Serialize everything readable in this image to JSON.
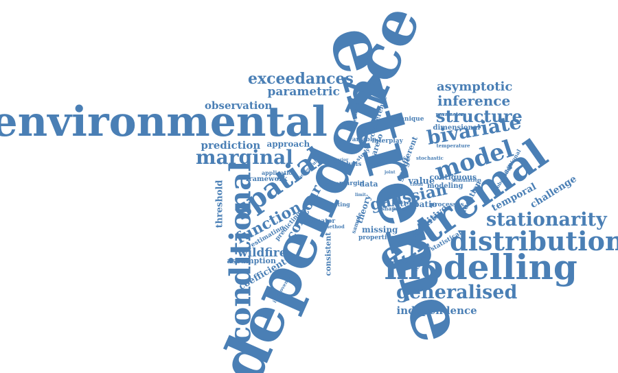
{
  "colors": {
    "word": "#4a7fb5",
    "background": "#ffffff"
  },
  "words": [
    {
      "id": "w-extreme",
      "text": "extreme"
    },
    {
      "id": "w-dependence",
      "text": "dependence"
    },
    {
      "id": "w-environmental",
      "text": "environmental"
    },
    {
      "id": "w-extremal",
      "text": "extremal"
    },
    {
      "id": "w-modelling",
      "text": "modelling"
    },
    {
      "id": "w-distribution",
      "text": "distribution"
    },
    {
      "id": "w-conditional",
      "text": "conditional"
    },
    {
      "id": "w-spatial",
      "text": "spatial"
    },
    {
      "id": "w-marginal",
      "text": "marginal"
    },
    {
      "id": "w-model",
      "text": "model"
    },
    {
      "id": "w-stationarity",
      "text": "stationarity"
    },
    {
      "id": "w-generalised",
      "text": "generalised"
    },
    {
      "id": "w-bivariate",
      "text": "bivariate"
    },
    {
      "id": "w-structure",
      "text": "structure"
    },
    {
      "id": "w-exceedances",
      "text": "exceedances"
    },
    {
      "id": "w-function",
      "text": "function"
    },
    {
      "id": "w-contour",
      "text": "contour"
    },
    {
      "id": "w-gaussian",
      "text": "gaussian"
    },
    {
      "id": "w-inference",
      "text": "inference"
    },
    {
      "id": "w-asymptotic",
      "text": "asymptotic"
    },
    {
      "id": "w-parametric",
      "text": "parametric"
    },
    {
      "id": "w-observation",
      "text": "observation"
    },
    {
      "id": "w-prediction",
      "text": "prediction"
    },
    {
      "id": "w-independence",
      "text": "independence"
    },
    {
      "id": "w-wildfire",
      "text": "wildfire"
    },
    {
      "id": "w-temporal",
      "text": "temporal"
    },
    {
      "id": "w-threshold",
      "text": "threshold"
    },
    {
      "id": "w-coefficient",
      "text": "coefficient"
    },
    {
      "id": "w-approach",
      "text": "approach"
    },
    {
      "id": "w-additive",
      "text": "additive"
    },
    {
      "id": "w-challenge",
      "text": "challenge"
    },
    {
      "id": "w-assumption",
      "text": "assumption"
    },
    {
      "id": "w-missing",
      "text": "missing"
    },
    {
      "id": "w-framework",
      "text": "framework"
    },
    {
      "id": "w-value",
      "text": "value"
    },
    {
      "id": "w-latent",
      "text": "latent"
    },
    {
      "id": "w-spatio",
      "text": "spatio"
    },
    {
      "id": "w-theory",
      "text": "theory"
    },
    {
      "id": "w-contiguous",
      "text": "contiguous"
    },
    {
      "id": "w-location",
      "text": "location"
    },
    {
      "id": "w-dimensional",
      "text": "dimensional"
    },
    {
      "id": "w-consistent",
      "text": "consistent"
    },
    {
      "id": "w-properties",
      "text": "properties"
    },
    {
      "id": "w-estimator",
      "text": "estimator"
    },
    {
      "id": "w-estimating",
      "text": "estimating"
    },
    {
      "id": "w-predicting",
      "text": "predicting"
    },
    {
      "id": "w-modeling",
      "text": "modeling"
    },
    {
      "id": "w-processes",
      "text": "processes"
    },
    {
      "id": "w-technique",
      "text": "technique"
    },
    {
      "id": "w-conference",
      "text": "conference"
    },
    {
      "id": "w-pareto",
      "text": "pareto"
    },
    {
      "id": "w-interplay",
      "text": "interplay"
    },
    {
      "id": "w-variable",
      "text": "variable"
    },
    {
      "id": "w-different",
      "text": "different"
    },
    {
      "id": "w-gauge",
      "text": "gauge"
    },
    {
      "id": "w-data",
      "text": "data"
    },
    {
      "id": "w-margin",
      "text": "margin"
    },
    {
      "id": "w-analysis",
      "text": "analysis"
    },
    {
      "id": "w-application",
      "text": "application"
    },
    {
      "id": "w-limiting",
      "text": "limiting"
    },
    {
      "id": "w-method",
      "text": "method"
    },
    {
      "id": "w-statistical",
      "text": "statistical"
    },
    {
      "id": "w-methodology",
      "text": "methodology"
    },
    {
      "id": "w-improvement",
      "text": "improvement"
    },
    {
      "id": "w-parameter",
      "text": "parameter"
    },
    {
      "id": "w-temperature",
      "text": "temperature"
    },
    {
      "id": "w-stochastic",
      "text": "stochastic"
    },
    {
      "id": "w-simulation",
      "text": "simulation"
    },
    {
      "id": "w-existing",
      "text": "existing"
    },
    {
      "id": "w-successful",
      "text": "successful"
    },
    {
      "id": "w-study",
      "text": "study"
    },
    {
      "id": "w-dependent",
      "text": "dependent"
    },
    {
      "id": "w-sample",
      "text": "sample"
    },
    {
      "id": "w-shape",
      "text": "shape"
    },
    {
      "id": "w-probability",
      "text": "probability"
    },
    {
      "id": "w-cloud",
      "text": "cloud"
    },
    {
      "id": "w-joint",
      "text": "joint"
    },
    {
      "id": "w-event",
      "text": "event"
    },
    {
      "id": "w-posterior",
      "text": "posterior"
    },
    {
      "id": "w-limit",
      "text": "limit"
    },
    {
      "id": "w-additional",
      "text": "additional"
    },
    {
      "id": "w-scaled",
      "text": "scaled"
    }
  ]
}
